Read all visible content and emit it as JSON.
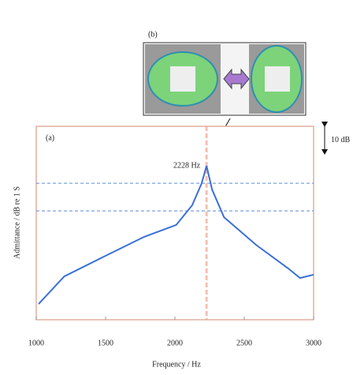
{
  "chart_data": {
    "type": "line",
    "panel_a_label": "(a)",
    "panel_b_label": "(b)",
    "xlabel": "Frequency / Hz",
    "ylabel": "Admittance / dB re 1 S",
    "annotation": "2228 Hz",
    "scale_bar": {
      "value": 10,
      "label": "10 dB"
    },
    "x": [
      1017,
      1202,
      1490,
      1778,
      2009,
      2124,
      2193,
      2228,
      2268,
      2354,
      2585,
      2816,
      2902,
      3000
    ],
    "series": [
      {
        "color": "#3a6fd8",
        "values": [
          5.7,
          15.7,
          22.9,
          30.0,
          34.3,
          41.4,
          49.4,
          55.7,
          47.1,
          37.1,
          27.1,
          18.6,
          15.1,
          16.3
        ]
      }
    ],
    "hlines": [
      49.4,
      39.4
    ],
    "vline": 2228,
    "xlim": [
      1000,
      3000
    ],
    "ylim": [
      0,
      70
    ],
    "xticks": [
      1000,
      1500,
      2000,
      2500,
      3000
    ]
  }
}
